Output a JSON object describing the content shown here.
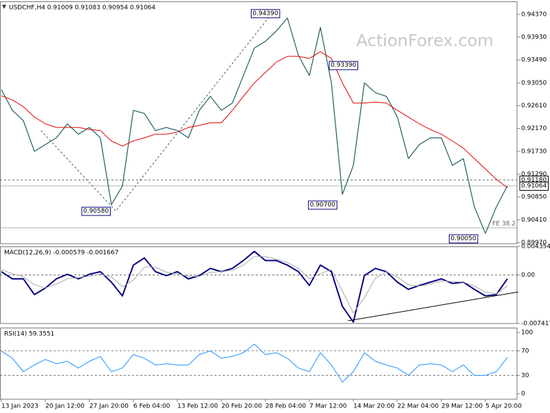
{
  "chart_data": [
    {
      "type": "line",
      "title": "USDCHF,H4  0.91009 0.91083 0.90954 0.91064",
      "watermark": "ActionForex.com",
      "ylim": [
        0.8995,
        0.9462
      ],
      "yticks": [
        {
          "value": 0.9437,
          "label": "0.94370"
        },
        {
          "value": 0.9393,
          "label": "0.93930"
        },
        {
          "value": 0.9349,
          "label": "0.93490"
        },
        {
          "value": 0.9305,
          "label": "0.93050"
        },
        {
          "value": 0.9261,
          "label": "0.92610"
        },
        {
          "value": 0.9217,
          "label": "0.92170"
        },
        {
          "value": 0.9173,
          "label": "0.91730"
        },
        {
          "value": 0.9129,
          "label": "0.91290"
        },
        {
          "value": 0.9085,
          "label": "0.90850"
        },
        {
          "value": 0.9041,
          "label": "0.90410"
        },
        {
          "value": 0.8997,
          "label": "0.89970"
        }
      ],
      "series": [
        {
          "color": "#1f5c5c",
          "width": 1.2,
          "values": [
            0.9292,
            0.9252,
            0.9232,
            0.9173,
            0.9186,
            0.9199,
            0.9226,
            0.9206,
            0.9219,
            0.9199,
            0.907,
            0.9106,
            0.9252,
            0.9246,
            0.9213,
            0.9219,
            0.9213,
            0.9199,
            0.9252,
            0.9279,
            0.9252,
            0.9266,
            0.9319,
            0.9372,
            0.9385,
            0.9405,
            0.943,
            0.9358,
            0.9319,
            0.9412,
            0.9305,
            0.909,
            0.9146,
            0.9305,
            0.9286,
            0.9279,
            0.9239,
            0.9159,
            0.9186,
            0.9199,
            0.9199,
            0.9146,
            0.9159,
            0.9066,
            0.9015,
            0.9066,
            0.91064
          ]
        },
        {
          "color": "#e00000",
          "width": 1,
          "values": [
            0.928,
            0.9272,
            0.9259,
            0.9239,
            0.9226,
            0.9219,
            0.9219,
            0.9219,
            0.9215,
            0.9213,
            0.9193,
            0.9183,
            0.9193,
            0.9199,
            0.9206,
            0.9206,
            0.921,
            0.9219,
            0.9223,
            0.9228,
            0.9228,
            0.9252,
            0.9279,
            0.9305,
            0.9325,
            0.9345,
            0.9356,
            0.9356,
            0.9352,
            0.9365,
            0.9352,
            0.9305,
            0.9266,
            0.9266,
            0.9268,
            0.9266,
            0.9252,
            0.9239,
            0.9226,
            0.9215,
            0.9206,
            0.9193,
            0.9179,
            0.9159,
            0.9139,
            0.9119,
            0.9103
          ]
        }
      ],
      "levels": [
        {
          "value": 0.9118,
          "label": "0.91180",
          "style": "dashed",
          "label_position": "axis"
        },
        {
          "value": 0.91064,
          "label": "0.91064",
          "style": "solid",
          "label_position": "axis"
        },
        {
          "value": 0.90255,
          "label": "FE 38.2",
          "style": "solid",
          "label_position": "inside"
        }
      ],
      "lines": [
        {
          "x": [
            3.6,
            10.4,
            24.6
          ],
          "values": [
            0.9213,
            0.9058,
            0.9439
          ],
          "style": "dashed"
        }
      ],
      "annotations": [
        {
          "x": 24,
          "value": 0.9439,
          "label": "0.94390"
        },
        {
          "x": 31.1,
          "value": 0.9339,
          "label": "0.93390"
        },
        {
          "x": 8.6,
          "value": 0.9058,
          "label": "0.90580"
        },
        {
          "x": 29.2,
          "value": 0.907,
          "label": "0.90700"
        },
        {
          "x": 42,
          "value": 0.9005,
          "label": "0.90050"
        }
      ]
    },
    {
      "type": "line",
      "title": "MACD(12,26,9) -0.000579 -0.001667",
      "ylim": [
        -0.007417,
        0.004354
      ],
      "yticks": [
        0.004354,
        {
          "value": 0,
          "label": "0.00"
        },
        -0.007417
      ],
      "series": [
        {
          "color": "#000080",
          "width": 2,
          "values": [
            0.0005,
            -0.0006,
            -0.0006,
            -0.003,
            -0.002,
            -0.0006,
            0.0001,
            -0.0006,
            0.0001,
            0.0005,
            -0.0011,
            -0.0032,
            0.0015,
            0.0026,
            0.0005,
            -0.0001,
            0.0005,
            -0.0006,
            -0.0001,
            0.001,
            0.0005,
            0.001,
            0.0022,
            0.0036,
            0.0022,
            0.0022,
            0.0015,
            0.0005,
            -0.0016,
            0.0015,
            0.0005,
            -0.0048,
            -0.0072,
            -0.0001,
            0.001,
            0.0005,
            -0.0011,
            -0.0022,
            -0.0016,
            -0.0011,
            -0.0006,
            -0.0013,
            -0.0011,
            -0.0022,
            -0.0032,
            -0.003,
            -0.000579
          ]
        },
        {
          "color": "#a8a8a8",
          "width": 1,
          "values": [
            0.0008,
            0.0002,
            -0.0003,
            -0.0015,
            -0.002,
            -0.0014,
            -0.0006,
            -0.0004,
            -0.0002,
            0.0001,
            -0.0003,
            -0.0018,
            -0.0008,
            0.0012,
            0.0012,
            0.0004,
            0.0002,
            -0.0002,
            -0.0002,
            0.0004,
            0.0005,
            0.0007,
            0.0015,
            0.0028,
            0.0028,
            0.0024,
            0.0019,
            0.001,
            -0.0006,
            0.0002,
            0.0008,
            -0.0025,
            -0.0058,
            -0.0035,
            -0.0005,
            0.0005,
            -0.0003,
            -0.0015,
            -0.0017,
            -0.0014,
            -0.0009,
            -0.001,
            -0.0011,
            -0.0017,
            -0.0026,
            -0.0029,
            -0.001667
          ]
        }
      ],
      "levels": [
        {
          "value": 0,
          "style": "dashed"
        }
      ],
      "lines": [
        {
          "x": [
            31.5,
            47
          ],
          "values": [
            -0.007,
            -0.0026
          ],
          "style": "solid"
        }
      ]
    },
    {
      "type": "line",
      "title": "RSI(14) 59.3551",
      "ylim": [
        -9,
        108
      ],
      "yticks": [
        100,
        70,
        30,
        0
      ],
      "categories": [
        "13 Jan 2023",
        null,
        null,
        null,
        "20 Jan 12:00",
        null,
        null,
        null,
        "27 Jan 20:00",
        null,
        null,
        null,
        "6 Feb 04:00",
        null,
        null,
        null,
        "13 Feb 12:00",
        null,
        null,
        null,
        "20 Feb 20:00",
        null,
        null,
        null,
        "28 Feb 04:00",
        null,
        null,
        null,
        "7 Mar 12:00",
        null,
        null,
        null,
        "14 Mar 20:00",
        null,
        null,
        null,
        "22 Mar 04:00",
        null,
        null,
        null,
        "29 Mar 12:00",
        null,
        null,
        null,
        "5 Apr 20:00",
        null,
        null
      ],
      "series": [
        {
          "color": "#1e90ff",
          "width": 1,
          "values": [
            70,
            58,
            36,
            47,
            56,
            49,
            53,
            42,
            53,
            61,
            36,
            42,
            64,
            58,
            47,
            49,
            47,
            47,
            64,
            70,
            58,
            61,
            67,
            81,
            64,
            67,
            58,
            42,
            36,
            67,
            47,
            19,
            36,
            67,
            53,
            47,
            42,
            30,
            47,
            49,
            47,
            36,
            47,
            30,
            30,
            36,
            59.3551
          ]
        }
      ],
      "levels": [
        {
          "value": 70,
          "style": "dashed"
        },
        {
          "value": 30,
          "style": "dashed"
        }
      ]
    }
  ]
}
